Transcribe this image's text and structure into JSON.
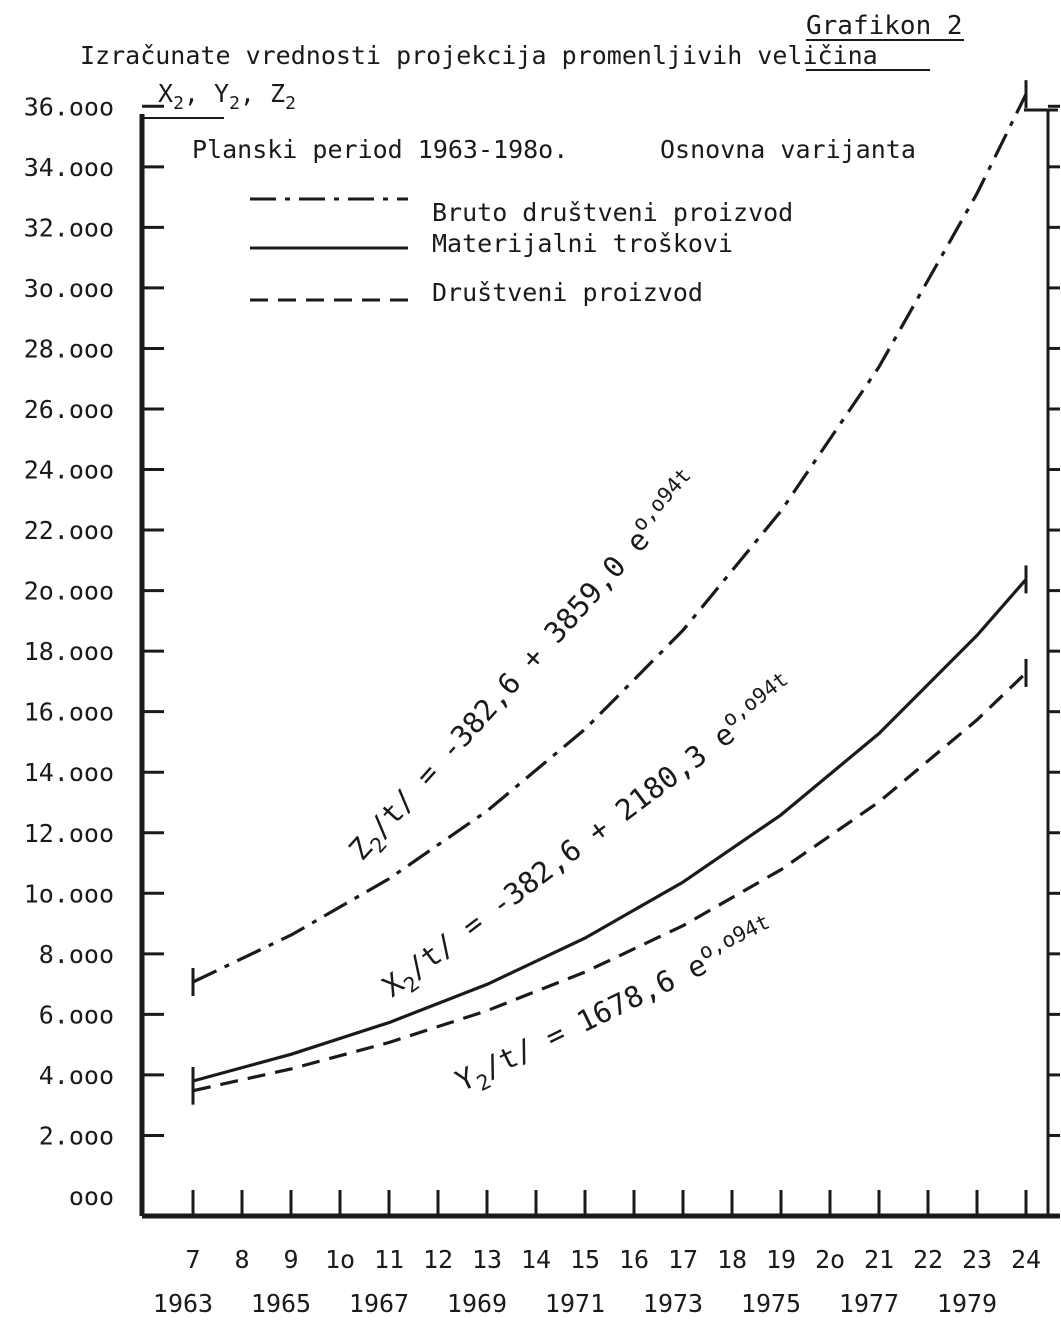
{
  "chart_data": {
    "type": "line",
    "label": "Grafikon 2",
    "title": "Izračunate vrednosti projekcija promenljivih veličina",
    "variables": {
      "x": "X",
      "y": "Y",
      "z": "Z",
      "sub": "2",
      "sep": ", "
    },
    "subtitle_left": "Planski period 1963-198o.",
    "subtitle_right": "Osnovna varijanta",
    "y_tick_labels": [
      "36.ooo",
      "34.ooo",
      "32.ooo",
      "3o.ooo",
      "28.ooo",
      "26.ooo",
      "24.ooo",
      "22.ooo",
      "2o.ooo",
      "18.ooo",
      "16.ooo",
      "14.ooo",
      "12.ooo",
      "1o.ooo",
      "8.ooo",
      "6.ooo",
      "4.ooo",
      "2.ooo",
      "ooo"
    ],
    "x_tick_labels_t": [
      "7",
      "8",
      "9",
      "1o",
      "11",
      "12",
      "13",
      "14",
      "15",
      "16",
      "17",
      "18",
      "19",
      "2o",
      "21",
      "22",
      "23",
      "24"
    ],
    "x_tick_labels_year": [
      "1963",
      "1965",
      "1967",
      "1969",
      "1971",
      "1973",
      "1975",
      "1977",
      "1979"
    ],
    "x_range": [
      7,
      24
    ],
    "ylim": [
      0,
      36000
    ],
    "series": [
      {
        "name": "Bruto društveni proizvod",
        "style": "dashdot",
        "formula": {
          "lhs": "Z",
          "sub": "2",
          "rest": "/t/ = -382,6 + 3859,0 e",
          "exp": "o,o94t"
        },
        "x": [
          7,
          9,
          11,
          13,
          15,
          17,
          19,
          21,
          23,
          24
        ],
        "y": [
          7070,
          8620,
          10480,
          12720,
          15420,
          18690,
          22630,
          27390,
          33120,
          36400
        ]
      },
      {
        "name": "Materijalni troškovi",
        "style": "solid",
        "formula": {
          "lhs": "X",
          "sub": "2",
          "rest": "/t/ = -382,6 + 2180,3 e",
          "exp": "o,o94t"
        },
        "x": [
          7,
          9,
          11,
          13,
          15,
          17,
          19,
          21,
          23,
          24
        ],
        "y": [
          3800,
          4680,
          5730,
          6990,
          8520,
          10370,
          12590,
          15280,
          18520,
          20370
        ]
      },
      {
        "name": "Društveni proizvod",
        "style": "dashed",
        "formula": {
          "lhs": "Y",
          "sub": "2",
          "rest": "/t/ = 1678,6 e",
          "exp": "o,o94t"
        },
        "x": [
          7,
          9,
          11,
          13,
          15,
          17,
          19,
          21,
          23,
          24
        ],
        "y": [
          3480,
          4200,
          5070,
          6120,
          7400,
          8930,
          10780,
          13020,
          15730,
          17280
        ]
      }
    ],
    "legend_placement": "top-left",
    "grid": false
  }
}
